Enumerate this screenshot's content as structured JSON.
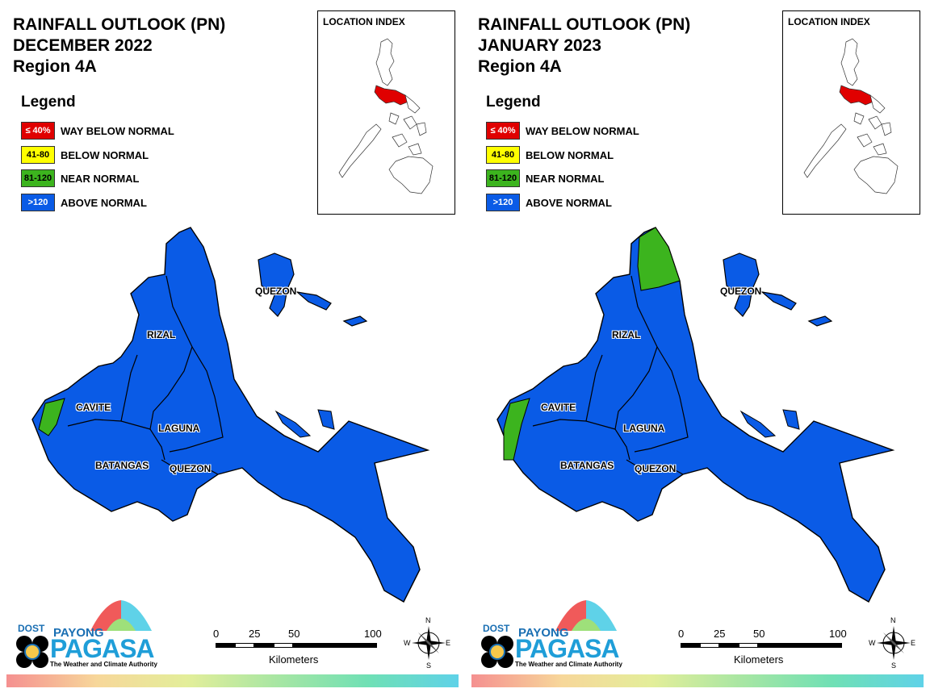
{
  "panels": [
    {
      "title_line1": "RAINFALL OUTLOOK (PN)",
      "title_line2": "DECEMBER 2022",
      "title_line3": "Region 4A",
      "north_zone": "above"
    },
    {
      "title_line1": "RAINFALL OUTLOOK (PN)",
      "title_line2": "JANUARY 2023",
      "title_line3": "Region 4A",
      "north_zone": "near"
    }
  ],
  "legend": {
    "title": "Legend",
    "items": [
      {
        "swatch": "≤ 40%",
        "label": "WAY BELOW NORMAL",
        "color": "#e00000",
        "text_color": "#ffffff"
      },
      {
        "swatch": "41-80",
        "label": "BELOW NORMAL",
        "color": "#ffff00",
        "text_color": "#000000"
      },
      {
        "swatch": "81-120",
        "label": "NEAR NORMAL",
        "color": "#3cb41e",
        "text_color": "#000000"
      },
      {
        "swatch": ">120",
        "label": "ABOVE NORMAL",
        "color": "#0a5be6",
        "text_color": "#ffffff"
      }
    ]
  },
  "location_index": {
    "label": "LOCATION INDEX",
    "highlight_color": "#e00000"
  },
  "places": {
    "quezon_north": "QUEZON",
    "rizal": "RIZAL",
    "cavite": "CAVITE",
    "laguna": "LAGUNA",
    "batangas": "BATANGAS",
    "quezon_south": "QUEZON"
  },
  "scale": {
    "t0": "0",
    "t25": "25",
    "t50": "50",
    "t100": "100",
    "units": "Kilometers"
  },
  "compass": {
    "n": "N",
    "s": "S",
    "e": "E",
    "w": "W"
  },
  "logo": {
    "dost": "DOST",
    "payong": "PAYONG",
    "pagasa": "PAGASA",
    "tagline": "The Weather and Climate Authority"
  },
  "colors": {
    "above_normal": "#0a5be6",
    "near_normal": "#3cb41e"
  }
}
